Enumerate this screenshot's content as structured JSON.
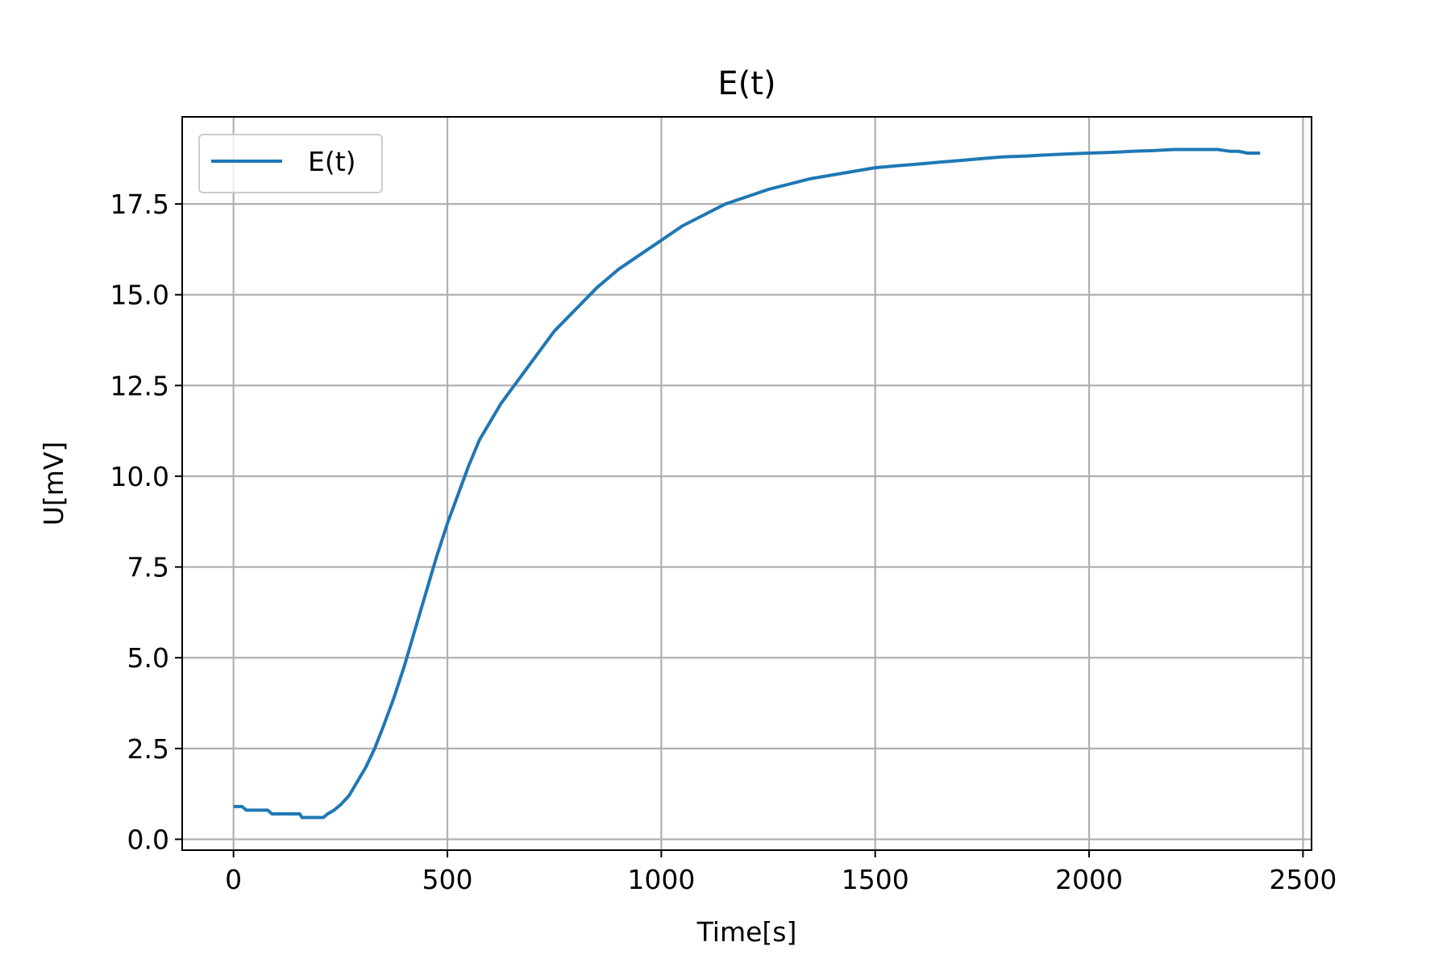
{
  "chart_data": {
    "type": "line",
    "title": "E(t)",
    "xlabel": "Time[s]",
    "ylabel": "U[mV]",
    "xlim": [
      -120,
      2520
    ],
    "ylim": [
      -0.3,
      19.9
    ],
    "xticks": [
      0,
      500,
      1000,
      1500,
      2000,
      2500
    ],
    "xtick_labels": [
      "0",
      "500",
      "1000",
      "1500",
      "2000",
      "2500"
    ],
    "yticks": [
      0.0,
      2.5,
      5.0,
      7.5,
      10.0,
      12.5,
      15.0,
      17.5
    ],
    "ytick_labels": [
      "0.0",
      "2.5",
      "5.0",
      "7.5",
      "10.0",
      "12.5",
      "15.0",
      "17.5"
    ],
    "grid": true,
    "legend": "upper left",
    "series": [
      {
        "name": "E(t)",
        "color": "#1f77b4",
        "x": [
          0,
          20,
          30,
          80,
          90,
          155,
          160,
          210,
          220,
          235,
          250,
          270,
          290,
          310,
          330,
          350,
          375,
          400,
          425,
          450,
          475,
          500,
          525,
          550,
          575,
          600,
          625,
          650,
          700,
          750,
          800,
          850,
          900,
          950,
          1000,
          1050,
          1100,
          1150,
          1200,
          1250,
          1300,
          1350,
          1400,
          1450,
          1500,
          1550,
          1600,
          1650,
          1700,
          1750,
          1800,
          1850,
          1900,
          1950,
          2000,
          2050,
          2100,
          2150,
          2200,
          2250,
          2300,
          2330,
          2350,
          2370,
          2385,
          2400
        ],
        "y": [
          0.9,
          0.9,
          0.8,
          0.8,
          0.7,
          0.7,
          0.6,
          0.6,
          0.7,
          0.8,
          0.95,
          1.2,
          1.6,
          2.0,
          2.5,
          3.1,
          3.9,
          4.8,
          5.8,
          6.8,
          7.8,
          8.7,
          9.5,
          10.3,
          11.0,
          11.5,
          12.0,
          12.4,
          13.2,
          14.0,
          14.6,
          15.2,
          15.7,
          16.1,
          16.5,
          16.9,
          17.2,
          17.5,
          17.7,
          17.9,
          18.05,
          18.2,
          18.3,
          18.4,
          18.5,
          18.55,
          18.6,
          18.65,
          18.7,
          18.75,
          18.8,
          18.82,
          18.85,
          18.88,
          18.9,
          18.92,
          18.95,
          18.97,
          19.0,
          19.0,
          19.0,
          18.95,
          18.95,
          18.9,
          18.9,
          18.9
        ]
      }
    ]
  }
}
